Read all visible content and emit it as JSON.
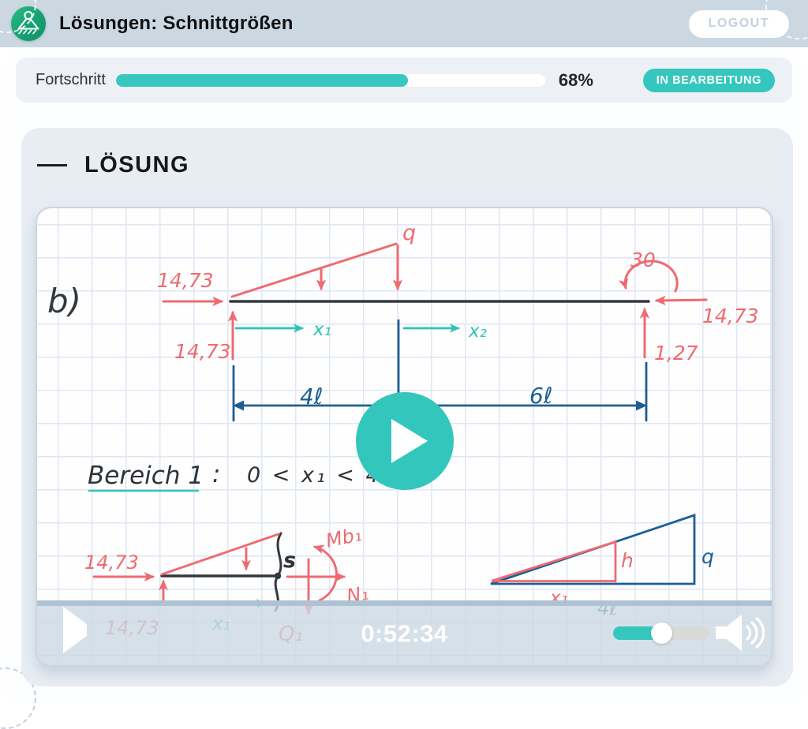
{
  "header": {
    "title": "Lösungen: Schnittgrößen",
    "logout_label": "LOGOUT"
  },
  "progress": {
    "label": "Fortschritt",
    "percent": 68,
    "percent_label": "68%",
    "status_label": "IN BEARBEITUNG"
  },
  "solution": {
    "heading": "LÖSUNG"
  },
  "video": {
    "time_label": "0:52:34",
    "beam": {
      "part_label": "b)",
      "load_label": "q",
      "moment_label": "30",
      "force_left": "14,73",
      "reaction_left": "14,73",
      "force_right": "14,73",
      "reaction_right": "1,27",
      "x1_label": "x₁",
      "x2_label": "x₂",
      "dim_left": "4ℓ",
      "dim_right": "6ℓ"
    },
    "region": {
      "title": "Bereich 1",
      "colon": ":",
      "range": "0 < x₁ < 4"
    },
    "cut": {
      "force_left": "14,73",
      "reaction_left": "14,73",
      "x1_label": "x₁",
      "section_label": "s",
      "moment_label": "Mb₁",
      "normal_label": "N₁",
      "shear_label": "Q₁"
    },
    "triangle": {
      "height_label": "h",
      "q_label": "q",
      "x1_label": "x₁",
      "dim_label": "4ℓ"
    }
  },
  "colors": {
    "accent_teal": "#35c7bd",
    "hand_red": "#ef6a70",
    "hand_blue": "#1d5f93",
    "hand_teal": "#2ec4b6",
    "hand_dark": "#33383d",
    "header_bg": "#ccd8e1"
  }
}
